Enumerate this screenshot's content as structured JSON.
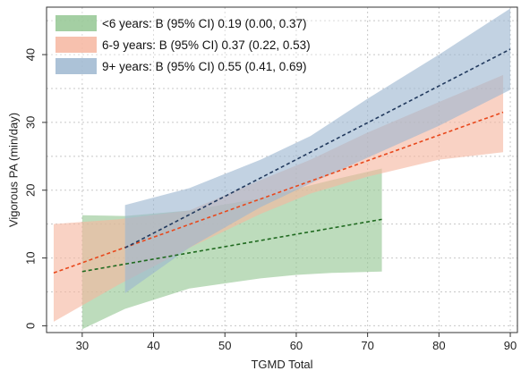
{
  "chart_data": {
    "type": "line",
    "title": "",
    "xlabel": "TGMD Total",
    "ylabel": "Vigorous PA (min/day)",
    "xlim": [
      25,
      91
    ],
    "ylim": [
      -1,
      47
    ],
    "xticks": [
      30,
      40,
      50,
      60,
      70,
      80,
      90
    ],
    "yticks": [
      0,
      10,
      20,
      30,
      40
    ],
    "xtick_labels": [
      "30",
      "40",
      "50",
      "60",
      "70",
      "80",
      "90"
    ],
    "ytick_labels": [
      "0",
      "10",
      "20",
      "30",
      "40"
    ],
    "grid": true,
    "legend_position": "top-left",
    "series": [
      {
        "name": "<6 years: B (95% CI) 0.19 (0.00, 0.37)",
        "band_color": "#94c793",
        "line_color": "#1f6a1f",
        "x": [
          30,
          72
        ],
        "y": [
          8.0,
          15.7
        ],
        "ci_x": [
          30,
          36,
          45,
          55,
          60,
          65,
          72
        ],
        "ci_lower": [
          -0.5,
          2.5,
          5.5,
          7.0,
          7.5,
          7.8,
          8.0
        ],
        "ci_upper": [
          16.3,
          16.2,
          17.0,
          18.8,
          20.2,
          21.5,
          23.2
        ]
      },
      {
        "name": "6-9 years: B (95% CI) 0.37 (0.22, 0.53)",
        "band_color": "#f6b6a0",
        "line_color": "#e8481c",
        "x": [
          26,
          89
        ],
        "y": [
          7.8,
          31.5
        ],
        "ci_x": [
          26,
          35,
          45,
          55,
          62,
          70,
          80,
          89
        ],
        "ci_lower": [
          0.6,
          6.0,
          11.5,
          16.5,
          19.5,
          22.0,
          24.5,
          25.6
        ],
        "ci_upper": [
          15.0,
          15.7,
          17.0,
          21.5,
          24.5,
          28.5,
          33.0,
          37.0
        ]
      },
      {
        "name": "9+ years: B (95% CI) 0.55 (0.41, 0.69)",
        "band_color": "#9db7d0",
        "line_color": "#223a5e",
        "x": [
          36,
          90
        ],
        "y": [
          11.5,
          40.8
        ],
        "ci_x": [
          36,
          45,
          55,
          62,
          70,
          80,
          90
        ],
        "ci_lower": [
          4.8,
          11.5,
          17.5,
          21.0,
          24.8,
          29.5,
          34.8
        ],
        "ci_upper": [
          17.8,
          20.3,
          24.5,
          28.0,
          33.5,
          40.0,
          46.8
        ]
      }
    ]
  }
}
